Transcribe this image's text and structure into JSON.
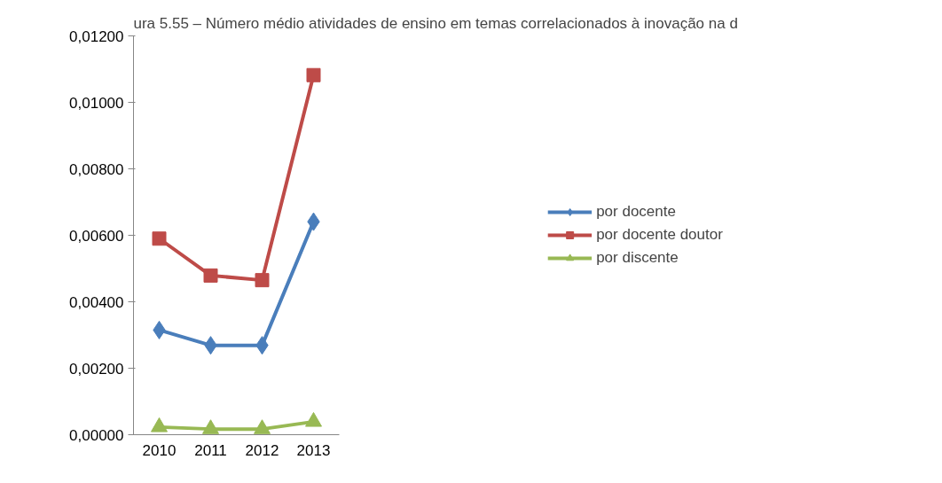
{
  "chart_data": {
    "type": "line",
    "title": "ura 5.55 – Número médio atividades de ensino em temas correlacionados à inovação na d",
    "categories": [
      "2010",
      "2011",
      "2012",
      "2013"
    ],
    "series": [
      {
        "name": "por docente",
        "color": "#4a7ebb",
        "marker": "diamond",
        "values": [
          0.00315,
          0.00269,
          0.00269,
          0.00641
        ]
      },
      {
        "name": "por docente doutor",
        "color": "#be4b48",
        "marker": "square",
        "values": [
          0.0059,
          0.00479,
          0.00465,
          0.01082
        ]
      },
      {
        "name": "por discente",
        "color": "#98b954",
        "marker": "triangle",
        "values": [
          0.00023,
          0.00017,
          0.00017,
          0.00039
        ]
      }
    ],
    "ylim": [
      0,
      0.012
    ],
    "yticks": [
      {
        "value": 0,
        "label": "0,00000"
      },
      {
        "value": 0.002,
        "label": "0,00200"
      },
      {
        "value": 0.004,
        "label": "0,00400"
      },
      {
        "value": 0.006,
        "label": "0,00600"
      },
      {
        "value": 0.008,
        "label": "0,00800"
      },
      {
        "value": 0.01,
        "label": "0,01000"
      },
      {
        "value": 0.012,
        "label": "0,01200"
      }
    ],
    "grid": false,
    "legend": "right"
  }
}
